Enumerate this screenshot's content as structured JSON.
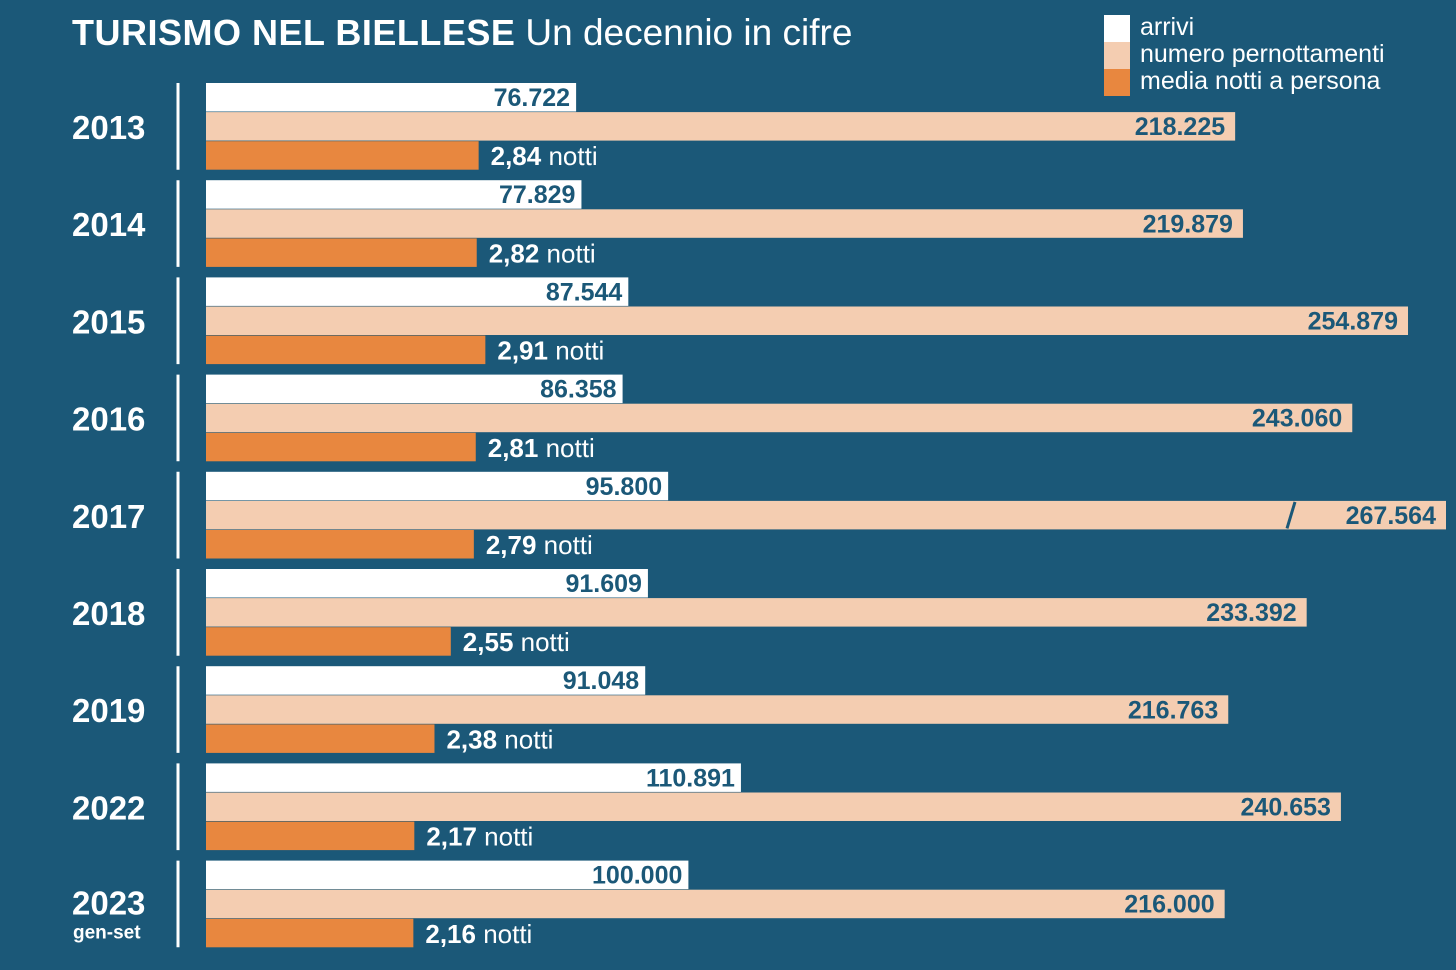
{
  "chart_data": {
    "type": "bar",
    "orientation": "horizontal",
    "title": "TURISMO NEL BIELLESE",
    "subtitle": "Un decennio in cifre",
    "categories": [
      "2013",
      "2014",
      "2015",
      "2016",
      "2017",
      "2018",
      "2019",
      "2022",
      "2023"
    ],
    "category_notes": [
      "",
      "",
      "",
      "",
      "",
      "",
      "",
      "",
      "gen-set"
    ],
    "series": [
      {
        "name": "arrivi",
        "color": "#ffffff",
        "values": [
          76722,
          77829,
          87544,
          86358,
          95800,
          91609,
          91048,
          110891,
          100000
        ],
        "labels": [
          "76.722",
          "77.829",
          "87.544",
          "86.358",
          "95.800",
          "91.609",
          "91.048",
          "110.891",
          "100.000"
        ]
      },
      {
        "name": "numero pernottamenti",
        "color": "#f4cdb1",
        "values": [
          218225,
          219879,
          254879,
          243060,
          267564,
          233392,
          216763,
          240653,
          216000
        ],
        "labels": [
          "218.225",
          "219.879",
          "254.879",
          "243.060",
          "267.564",
          "233.392",
          "216.763",
          "240.653",
          "216.000"
        ],
        "axis_break_on": "2017"
      },
      {
        "name": "media notti a persona",
        "color": "#e8873f",
        "values": [
          2.84,
          2.82,
          2.91,
          2.81,
          2.79,
          2.55,
          2.38,
          2.17,
          2.16
        ],
        "labels": [
          "2,84",
          "2,82",
          "2,91",
          "2,81",
          "2,79",
          "2,55",
          "2,38",
          "2,17",
          "2,16"
        ],
        "unit": "notti"
      }
    ],
    "legend_position": "top-right",
    "grid": false,
    "background": "#1b5878",
    "label_color": "#1b5878"
  }
}
